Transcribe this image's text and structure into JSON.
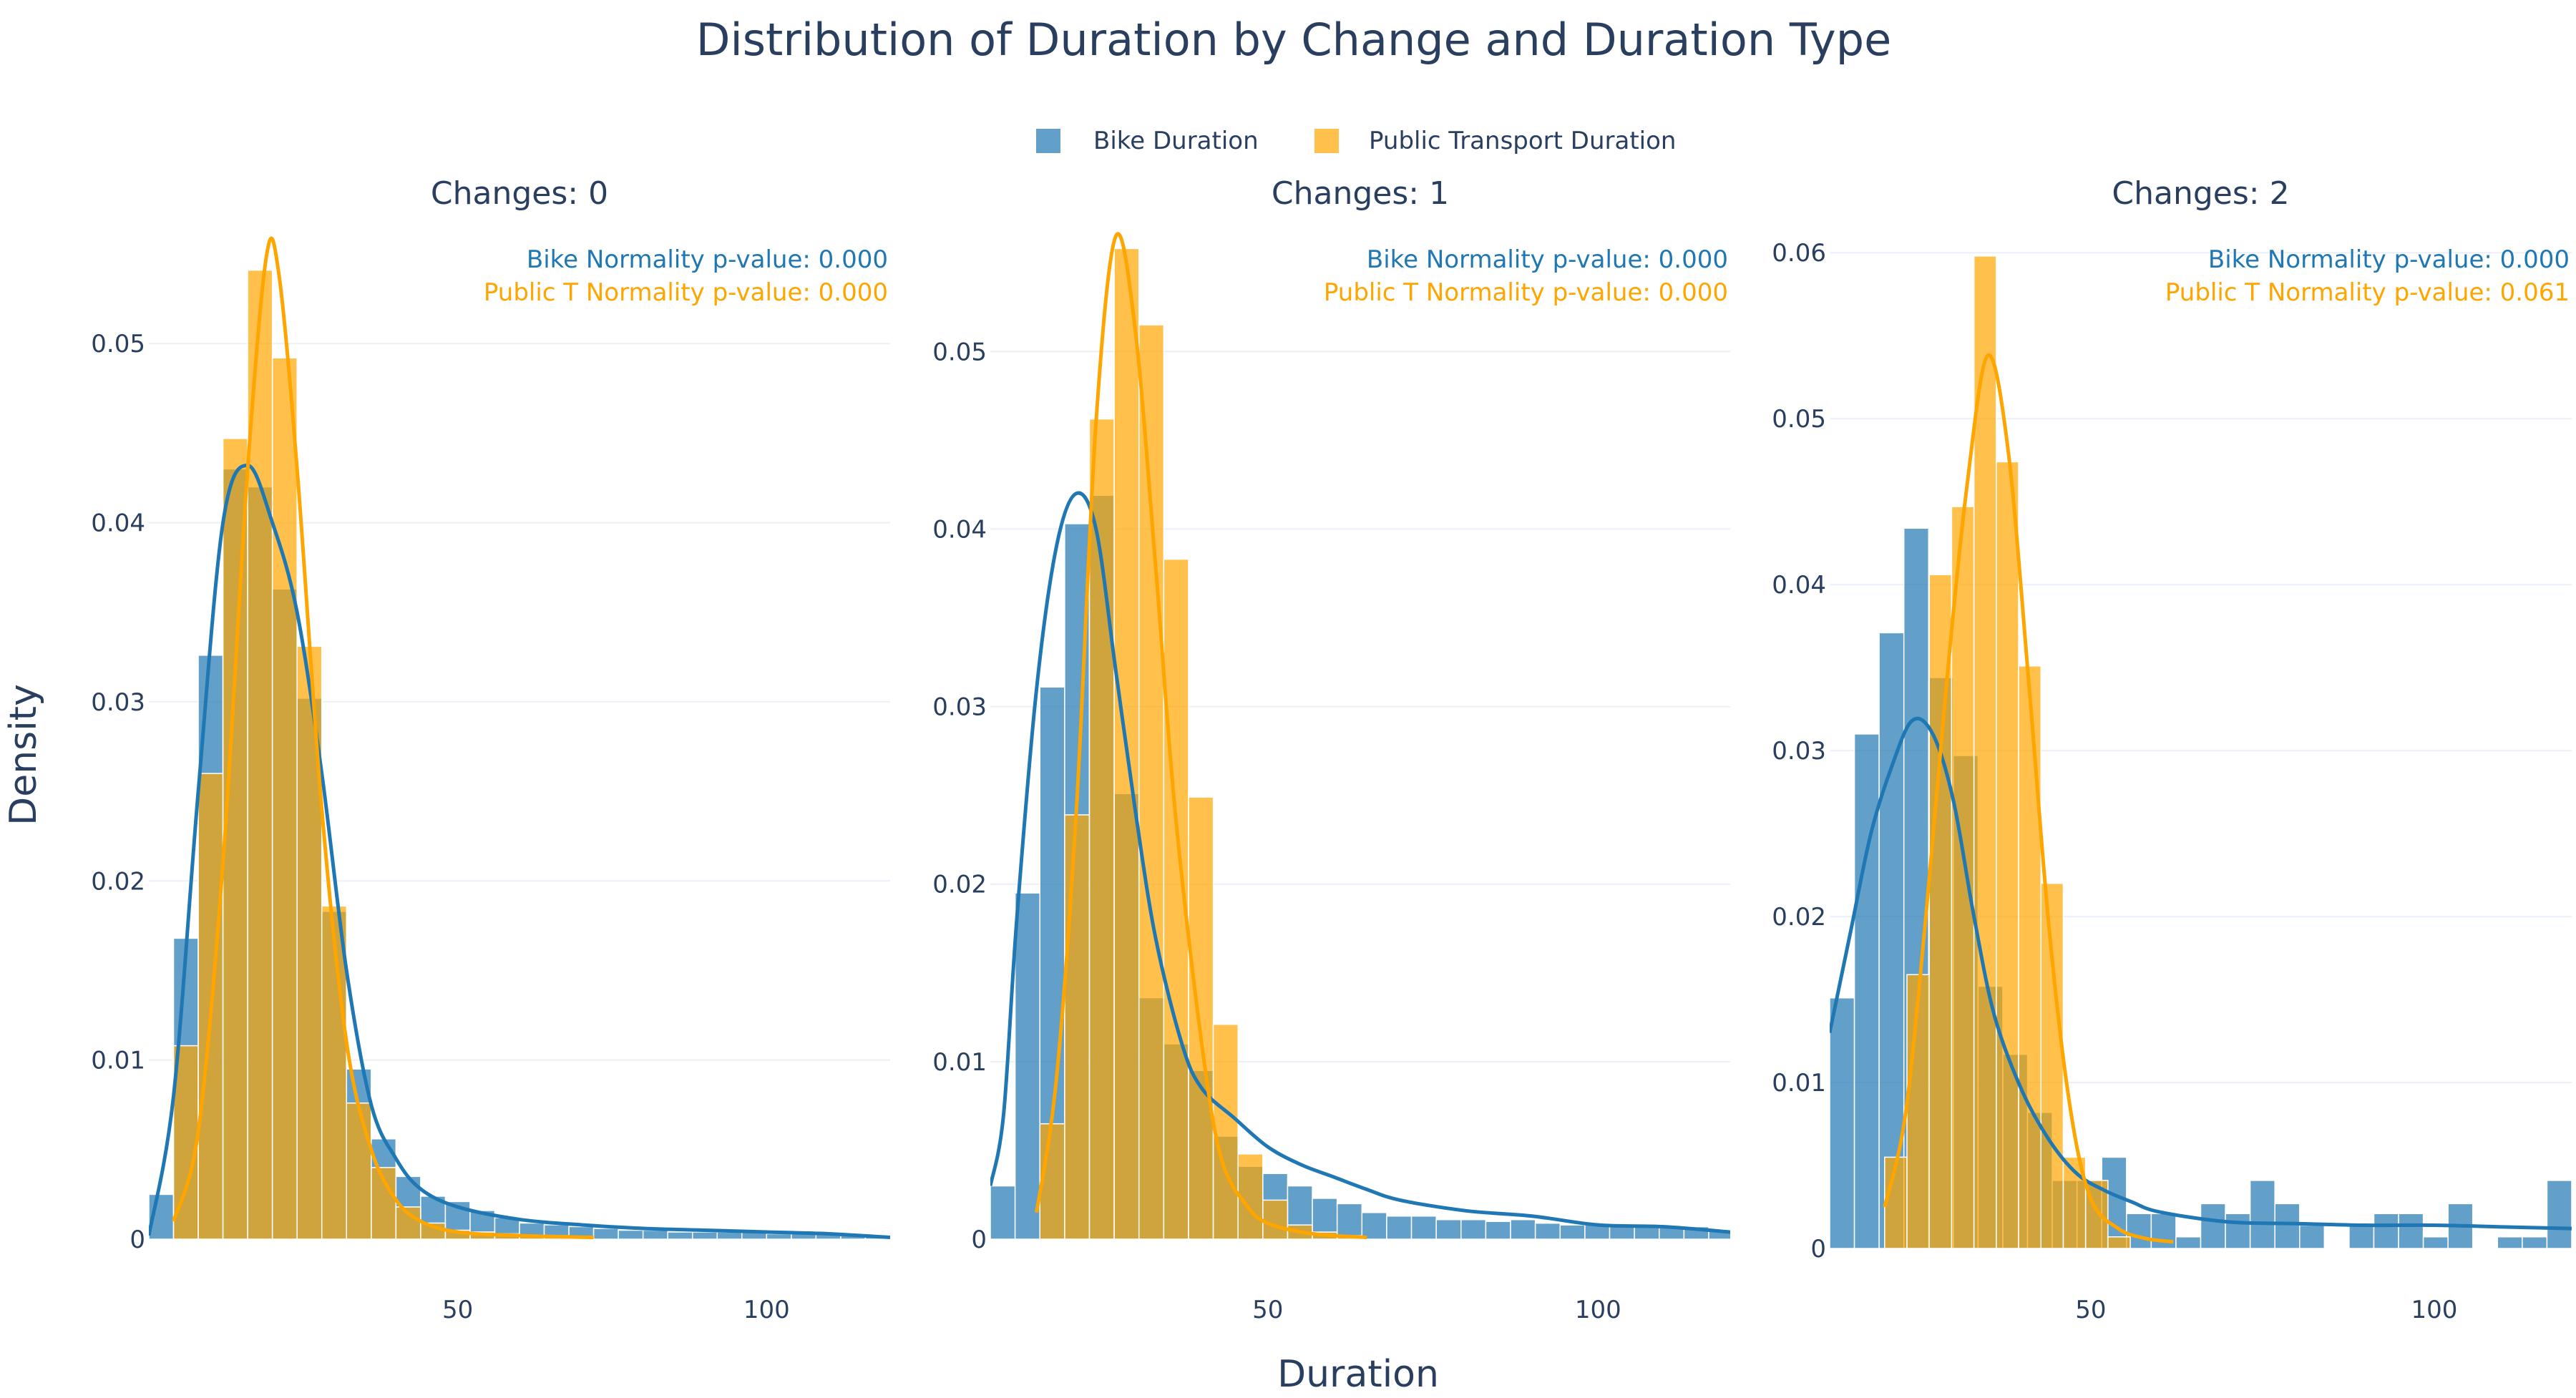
{
  "chart_data": {
    "type": "histogram",
    "title": "Distribution of Duration by Change and Duration Type",
    "xlabel": "Duration",
    "ylabel": "Density",
    "legend": {
      "position": "top-center",
      "items": [
        {
          "label": "Bike Duration",
          "color": "#1f77b4"
        },
        {
          "label": "Public Transport Duration",
          "color": "#ffa500"
        }
      ]
    },
    "colors": {
      "bike": "#1f77b4",
      "public": "#ffa500",
      "text": "#2a3f5f",
      "grid": "#ebf0f8"
    },
    "panels": [
      {
        "title": "Changes: 0",
        "xlim": [
          0,
          120
        ],
        "ylim": [
          0,
          0.056
        ],
        "xticks": [
          50,
          100
        ],
        "yticks": [
          0,
          0.01,
          0.02,
          0.03,
          0.04,
          0.05
        ],
        "ytick_labels": [
          "0",
          "0.01",
          "0.02",
          "0.03",
          "0.04",
          "0.05"
        ],
        "annotations": [
          "Bike Normality p-value: 0.000",
          "Public T Normality p-value: 0.000"
        ],
        "series": [
          {
            "name": "Bike Duration",
            "bin_start": 0,
            "bin_width": 4,
            "values": [
              0.0025,
              0.0168,
              0.0326,
              0.043,
              0.042,
              0.0363,
              0.0302,
              0.0183,
              0.0095,
              0.0056,
              0.0035,
              0.0024,
              0.0021,
              0.0016,
              0.0012,
              0.0009,
              0.0008,
              0.0007,
              0.0006,
              0.0005,
              0.0005,
              0.0004,
              0.0004,
              0.0004,
              0.0004,
              0.0003,
              0.0003,
              0.0003,
              0.0003,
              0.0002
            ],
            "kde": [
              [
                0,
                0.0002
              ],
              [
                4,
                0.008
              ],
              [
                8,
                0.025
              ],
              [
                12,
                0.04
              ],
              [
                16,
                0.0432
              ],
              [
                20,
                0.04
              ],
              [
                24,
                0.035
              ],
              [
                28,
                0.026
              ],
              [
                32,
                0.015
              ],
              [
                36,
                0.0075
              ],
              [
                40,
                0.0045
              ],
              [
                44,
                0.0028
              ],
              [
                50,
                0.0018
              ],
              [
                60,
                0.0011
              ],
              [
                70,
                0.0008
              ],
              [
                80,
                0.0006
              ],
              [
                90,
                0.0005
              ],
              [
                100,
                0.0004
              ],
              [
                110,
                0.0003
              ],
              [
                120,
                0.0001
              ]
            ]
          },
          {
            "name": "Public Transport Duration",
            "bin_start": 4,
            "bin_width": 4,
            "values": [
              0.0108,
              0.026,
              0.0447,
              0.0541,
              0.0492,
              0.0331,
              0.0186,
              0.0076,
              0.004,
              0.0018,
              0.0009,
              0.0005,
              0.0004,
              0.0003,
              0.0002,
              0.0002,
              0.0001
            ],
            "kde": [
              [
                4,
                0.001
              ],
              [
                8,
                0.006
              ],
              [
                12,
                0.021
              ],
              [
                16,
                0.043
              ],
              [
                19,
                0.0548
              ],
              [
                21,
                0.054
              ],
              [
                24,
                0.043
              ],
              [
                28,
                0.024
              ],
              [
                32,
                0.011
              ],
              [
                36,
                0.005
              ],
              [
                40,
                0.0022
              ],
              [
                44,
                0.001
              ],
              [
                50,
                0.0004
              ],
              [
                60,
                0.0002
              ],
              [
                72,
                0.0001
              ]
            ]
          }
        ]
      },
      {
        "title": "Changes: 1",
        "xlim": [
          8,
          120
        ],
        "ylim": [
          0,
          0.0565
        ],
        "xticks": [
          50,
          100
        ],
        "yticks": [
          0,
          0.01,
          0.02,
          0.03,
          0.04,
          0.05
        ],
        "ytick_labels": [
          "0",
          "0.01",
          "0.02",
          "0.03",
          "0.04",
          "0.05"
        ],
        "annotations": [
          "Bike Normality p-value: 0.000",
          "Public T Normality p-value: 0.000"
        ],
        "series": [
          {
            "name": "Bike Duration",
            "bin_start": 8,
            "bin_width": 3.75,
            "values": [
              0.003,
              0.0195,
              0.0311,
              0.0403,
              0.0419,
              0.0251,
              0.0136,
              0.011,
              0.0095,
              0.0058,
              0.0041,
              0.0037,
              0.003,
              0.0023,
              0.002,
              0.0015,
              0.0013,
              0.0013,
              0.0011,
              0.0011,
              0.001,
              0.0011,
              0.0009,
              0.0008,
              0.0008,
              0.0007,
              0.0008,
              0.0007,
              0.0007,
              0.0005
            ],
            "kde": [
              [
                8,
                0.003
              ],
              [
                10,
                0.007
              ],
              [
                12,
                0.018
              ],
              [
                15,
                0.031
              ],
              [
                18,
                0.039
              ],
              [
                21,
                0.042
              ],
              [
                24,
                0.04
              ],
              [
                27,
                0.032
              ],
              [
                30,
                0.024
              ],
              [
                33,
                0.017
              ],
              [
                37,
                0.011
              ],
              [
                40,
                0.0085
              ],
              [
                45,
                0.0068
              ],
              [
                50,
                0.0052
              ],
              [
                55,
                0.0042
              ],
              [
                60,
                0.0035
              ],
              [
                65,
                0.0028
              ],
              [
                70,
                0.0022
              ],
              [
                80,
                0.0016
              ],
              [
                90,
                0.0013
              ],
              [
                100,
                0.0008
              ],
              [
                110,
                0.0007
              ],
              [
                120,
                0.0004
              ]
            ]
          },
          {
            "name": "Public Transport Duration",
            "bin_start": 15.5,
            "bin_width": 3.75,
            "values": [
              0.0065,
              0.0239,
              0.0462,
              0.0558,
              0.0515,
              0.0383,
              0.0249,
              0.0121,
              0.0048,
              0.0022,
              0.0008,
              0.0004,
              0.0002
            ],
            "kde": [
              [
                15,
                0.0015
              ],
              [
                18,
                0.009
              ],
              [
                21,
                0.024
              ],
              [
                24,
                0.046
              ],
              [
                27,
                0.0565
              ],
              [
                30,
                0.051
              ],
              [
                33,
                0.038
              ],
              [
                36,
                0.024
              ],
              [
                40,
                0.011
              ],
              [
                43,
                0.0045
              ],
              [
                47,
                0.0018
              ],
              [
                50,
                0.0009
              ],
              [
                55,
                0.0004
              ],
              [
                60,
                0.0002
              ],
              [
                65,
                0.0001
              ]
            ]
          }
        ]
      },
      {
        "title": "Changes: 2",
        "xlim": [
          12,
          120
        ],
        "ylim": [
          0,
          0.061
        ],
        "xticks": [
          50,
          100
        ],
        "yticks": [
          0,
          0.01,
          0.02,
          0.03,
          0.04,
          0.05,
          0.06
        ],
        "ytick_labels": [
          "0",
          "0.01",
          "0.02",
          "0.03",
          "0.04",
          "0.05",
          "0.06"
        ],
        "annotations": [
          "Bike Normality p-value: 0.000",
          "Public T Normality p-value: 0.061"
        ],
        "series": [
          {
            "name": "Bike Duration",
            "bin_start": 12,
            "bin_width": 3.6,
            "values": [
              0.0151,
              0.031,
              0.0371,
              0.0434,
              0.0344,
              0.0297,
              0.0158,
              0.0117,
              0.0082,
              0.0041,
              0.0041,
              0.0055,
              0.0021,
              0.0021,
              0.0007,
              0.0027,
              0.0021,
              0.0041,
              0.0027,
              0.0014,
              0.0,
              0.0014,
              0.0021,
              0.0021,
              0.0007,
              0.0027,
              0.0,
              0.0007,
              0.0007,
              0.0041
            ],
            "kde": [
              [
                12,
                0.013
              ],
              [
                15,
                0.019
              ],
              [
                18,
                0.025
              ],
              [
                21,
                0.029
              ],
              [
                24,
                0.0318
              ],
              [
                27,
                0.031
              ],
              [
                30,
                0.027
              ],
              [
                33,
                0.02
              ],
              [
                36,
                0.014
              ],
              [
                40,
                0.0095
              ],
              [
                44,
                0.0065
              ],
              [
                48,
                0.0045
              ],
              [
                52,
                0.0035
              ],
              [
                56,
                0.0028
              ],
              [
                60,
                0.0022
              ],
              [
                70,
                0.0016
              ],
              [
                80,
                0.0015
              ],
              [
                90,
                0.0014
              ],
              [
                100,
                0.0014
              ],
              [
                110,
                0.0013
              ],
              [
                120,
                0.0012
              ]
            ]
          },
          {
            "name": "Public Transport Duration",
            "bin_start": 20,
            "bin_width": 3.25,
            "values": [
              0.0055,
              0.0165,
              0.0406,
              0.0447,
              0.0598,
              0.0474,
              0.0351,
              0.022,
              0.0055,
              0.0041,
              0.0007
            ],
            "kde": [
              [
                20,
                0.0025
              ],
              [
                23,
                0.008
              ],
              [
                26,
                0.02
              ],
              [
                29,
                0.034
              ],
              [
                32,
                0.046
              ],
              [
                35,
                0.0538
              ],
              [
                38,
                0.048
              ],
              [
                41,
                0.034
              ],
              [
                44,
                0.019
              ],
              [
                47,
                0.0085
              ],
              [
                50,
                0.003
              ],
              [
                54,
                0.0012
              ],
              [
                58,
                0.0006
              ],
              [
                62,
                0.0004
              ]
            ]
          }
        ]
      }
    ]
  }
}
